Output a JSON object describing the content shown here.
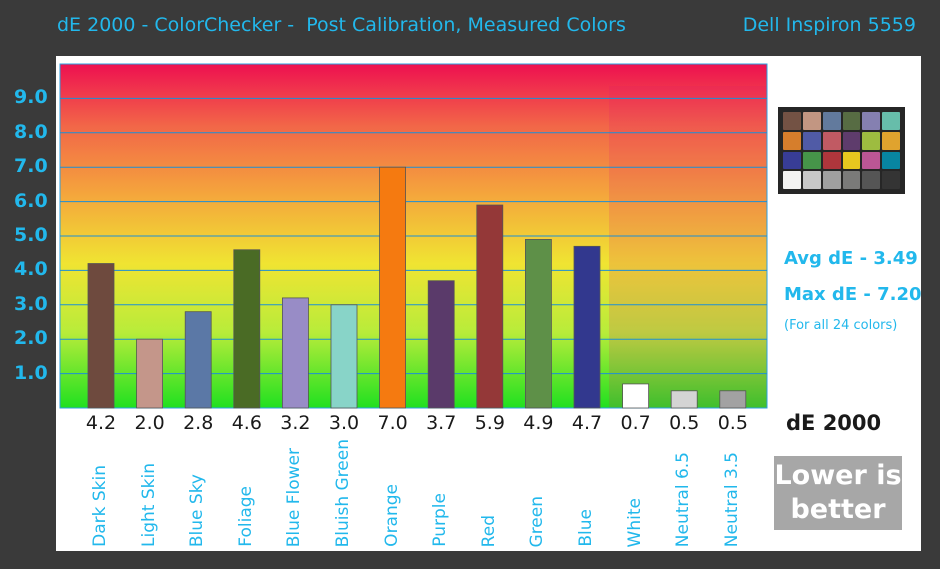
{
  "header": {
    "title": "dE 2000 - ColorChecker -  Post Calibration, Measured Colors",
    "device": "Dell Inspiron 5559"
  },
  "chart_data": {
    "type": "bar",
    "categories": [
      "Dark Skin",
      "Light Skin",
      "Blue Sky",
      "Foliage",
      "Blue Flower",
      "Bluish Green",
      "Orange",
      "Purple",
      "Red",
      "Green",
      "Blue",
      "White",
      "Neutral 6.5",
      "Neutral 3.5"
    ],
    "values": [
      4.2,
      2.0,
      2.8,
      4.6,
      3.2,
      3.0,
      7.0,
      3.7,
      5.9,
      4.9,
      4.7,
      0.7,
      0.5,
      0.5
    ],
    "value_labels": [
      "4.2",
      "2.0",
      "2.8",
      "4.6",
      "3.2",
      "3.0",
      "7.0",
      "3.7",
      "5.9",
      "4.9",
      "4.7",
      "0.7",
      "0.5",
      "0.5"
    ],
    "bar_colors": [
      "#6e4a3e",
      "#c4968a",
      "#5b78a6",
      "#4a6b25",
      "#988cc6",
      "#88d4c8",
      "#f57a10",
      "#5a3a6a",
      "#943838",
      "#5e9048",
      "#32388e",
      "#ffffff",
      "#d4d4d4",
      "#a2a2a2"
    ],
    "ytick_labels": [
      "1.0",
      "2.0",
      "3.0",
      "4.0",
      "5.0",
      "6.0",
      "7.0",
      "8.0",
      "9.0"
    ],
    "ylim": [
      0,
      10
    ],
    "grid": true,
    "xlabel": "dE 2000",
    "ylabel": ""
  },
  "stats": {
    "avg_label": "Avg dE - ",
    "avg_value": "3.49",
    "max_label": "Max dE - ",
    "max_value": "7.20",
    "note": "(For all 24 colors)"
  },
  "badge": "Lower is better",
  "colorchecker_swatches": [
    "#735244",
    "#c29682",
    "#627a9d",
    "#576c43",
    "#8580b1",
    "#67bdaa",
    "#d67e2c",
    "#505ba6",
    "#c15a63",
    "#5e3c6c",
    "#9dbc40",
    "#e0a32e",
    "#383d96",
    "#469449",
    "#af363c",
    "#e7c71f",
    "#bb5695",
    "#0885a1",
    "#f3f3f2",
    "#c8c8c8",
    "#a0a0a0",
    "#7a7a79",
    "#555555",
    "#343434"
  ]
}
